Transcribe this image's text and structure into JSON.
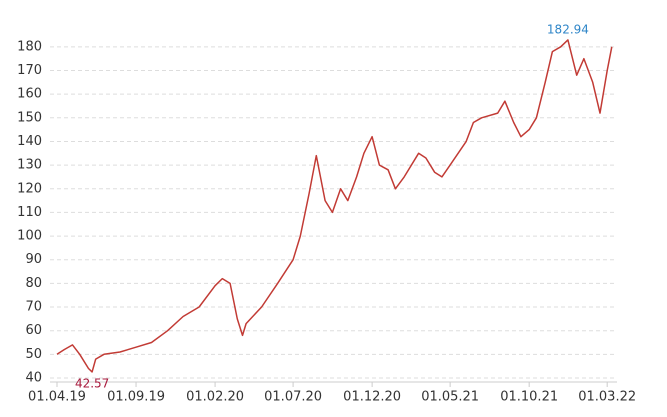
{
  "chart_data": {
    "type": "line",
    "x": [
      "01.04.19",
      "15.04.19",
      "01.05.19",
      "15.05.19",
      "01.06.19",
      "08.06.19",
      "15.06.19",
      "01.07.19",
      "01.08.19",
      "01.09.19",
      "01.10.19",
      "01.11.19",
      "01.12.19",
      "01.01.20",
      "01.02.20",
      "15.02.20",
      "01.03.20",
      "15.03.20",
      "25.03.20",
      "01.04.20",
      "01.05.20",
      "01.06.20",
      "01.07.20",
      "15.07.20",
      "01.08.20",
      "15.08.20",
      "01.09.20",
      "15.09.20",
      "01.10.20",
      "15.10.20",
      "01.11.20",
      "15.11.20",
      "01.12.20",
      "15.12.20",
      "01.01.21",
      "15.01.21",
      "01.02.21",
      "01.03.21",
      "15.03.21",
      "01.04.21",
      "15.04.21",
      "01.05.21",
      "01.06.21",
      "15.06.21",
      "01.07.21",
      "01.08.21",
      "15.08.21",
      "01.09.21",
      "15.09.21",
      "01.10.21",
      "15.10.21",
      "01.11.21",
      "15.11.21",
      "01.12.21",
      "15.12.21",
      "01.01.22",
      "15.01.22",
      "01.02.22",
      "15.02.22",
      "01.03.22",
      "10.03.22"
    ],
    "series": [
      {
        "color": "#c23b35",
        "values": [
          50,
          52,
          54,
          50,
          44,
          42.57,
          48,
          50,
          51,
          53,
          55,
          60,
          66,
          70,
          79,
          82,
          80,
          65,
          58,
          63,
          70,
          80,
          90,
          100,
          118,
          134,
          115,
          110,
          120,
          115,
          125,
          135,
          142,
          130,
          128,
          120,
          125,
          135,
          133,
          127,
          125,
          130,
          140,
          148,
          150,
          152,
          157,
          148,
          142,
          145,
          150,
          165,
          178,
          180,
          182.94,
          168,
          175,
          165,
          152,
          170,
          180
        ]
      }
    ],
    "annotations": [
      {
        "x": "15.12.21",
        "value": 182.94,
        "color": "#2f86c8"
      },
      {
        "x": "08.06.19",
        "value": 42.57,
        "color": "#a8193c"
      }
    ],
    "xlim": [
      "01.04.19",
      "20.03.22"
    ],
    "xticks": [
      "01.04.19",
      "01.09.19",
      "01.02.20",
      "01.07.20",
      "01.12.20",
      "01.05.21",
      "01.10.21",
      "01.03.22"
    ],
    "ylim": [
      40,
      185
    ],
    "yticks": [
      40,
      50,
      60,
      70,
      80,
      90,
      100,
      110,
      120,
      130,
      140,
      150,
      160,
      170,
      180
    ],
    "grid": true
  }
}
